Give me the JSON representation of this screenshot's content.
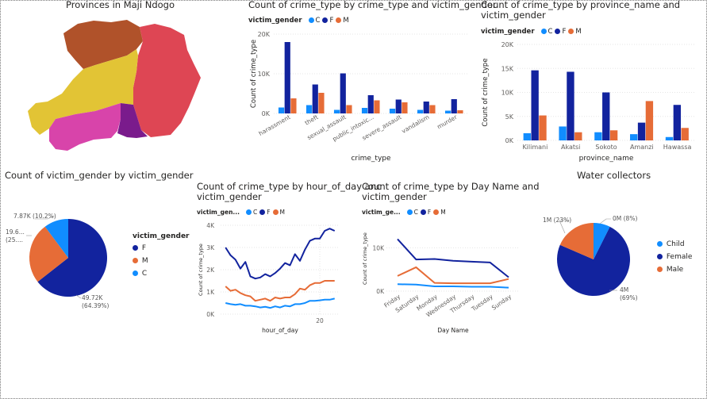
{
  "colors": {
    "C": "#118DFF",
    "F": "#12239E",
    "M": "#E66C37"
  },
  "map": {
    "title": "Provinces in Maji Ndogo"
  },
  "bar_gender": {
    "title": "Count of crime_type by crime_type and victim_gender",
    "legend_title": "victim_gender",
    "legend": [
      "C",
      "F",
      "M"
    ],
    "ylabel": "Count of crime_type",
    "xlabel": "crime_type",
    "yticks": [
      "0K",
      "10K",
      "20K"
    ]
  },
  "bar_province": {
    "title_line1": "Count of crime_type by province_name and",
    "title_line2": "victim_gender",
    "legend_title": "victim_gender",
    "legend": [
      "C",
      "F",
      "M"
    ],
    "ylabel": "Count of crime_type",
    "xlabel": "province_name",
    "yticks": [
      "0K",
      "5K",
      "10K",
      "15K",
      "20K"
    ]
  },
  "pie_gender": {
    "title": "Count of victim_gender by victim_gender",
    "legend_title": "victim_gender",
    "legend": [
      "F",
      "M",
      "C"
    ],
    "label_c": "7.87K (10.2%)",
    "label_m1": "19.6...",
    "label_m2": "(25....",
    "label_f1": "49.72K",
    "label_f2": "(64.39%)"
  },
  "line_hour": {
    "title_line1": "Count of crime_type by hour_of_day anc",
    "title_line2": "victim_gender",
    "legend_title": "victim_gen...",
    "legend": [
      "C",
      "F",
      "M"
    ],
    "ylabel": "Count of crime_type",
    "xlabel": "hour_of_day",
    "yticks": [
      "0K",
      "1K",
      "2K",
      "3K",
      "4K"
    ],
    "xtick": "20"
  },
  "line_day": {
    "title_line1": "Count of crime_type by Day Name and",
    "title_line2": "victim_gender",
    "legend_title": "victim_ge...",
    "legend": [
      "C",
      "F",
      "M"
    ],
    "ylabel": "Count of crime_type",
    "xlabel": "Day Name",
    "yticks": [
      "0K",
      "10K"
    ]
  },
  "pie_water": {
    "title": "Water collectors",
    "legend": [
      "Child",
      "Female",
      "Male"
    ],
    "label_child": "0M (8%)",
    "label_male": "1M (23%)",
    "label_female1": "4M",
    "label_female2": "(69%)"
  },
  "chart_data": [
    {
      "type": "bar",
      "title": "Count of crime_type by crime_type and victim_gender",
      "xlabel": "crime_type",
      "ylabel": "Count of crime_type",
      "ylim": [
        0,
        20000
      ],
      "categories": [
        "harassment",
        "theft",
        "sexual_assault",
        "public_intoxic...",
        "severe_assault",
        "vandalism",
        "murder"
      ],
      "series": [
        {
          "name": "C",
          "values": [
            1500,
            2100,
            900,
            1400,
            1200,
            900,
            700
          ]
        },
        {
          "name": "F",
          "values": [
            18000,
            7300,
            10100,
            4600,
            3500,
            3000,
            3600
          ]
        },
        {
          "name": "M",
          "values": [
            3800,
            5200,
            2100,
            3300,
            2800,
            2100,
            800
          ]
        }
      ]
    },
    {
      "type": "bar",
      "title": "Count of crime_type by province_name and victim_gender",
      "xlabel": "province_name",
      "ylabel": "Count of crime_type",
      "ylim": [
        0,
        20000
      ],
      "categories": [
        "Kilimani",
        "Akatsi",
        "Sokoto",
        "Amanzi",
        "Hawassa"
      ],
      "series": [
        {
          "name": "C",
          "values": [
            1500,
            2900,
            1700,
            1300,
            700
          ]
        },
        {
          "name": "F",
          "values": [
            14600,
            14300,
            10000,
            3700,
            7400
          ]
        },
        {
          "name": "M",
          "values": [
            5200,
            1700,
            2100,
            8200,
            2600
          ]
        }
      ]
    },
    {
      "type": "pie",
      "title": "Count of victim_gender by victim_gender",
      "labels": [
        "F",
        "M",
        "C"
      ],
      "values": [
        49720,
        19600,
        7870
      ],
      "percents": [
        64.39,
        25.4,
        10.2
      ]
    },
    {
      "type": "line",
      "title": "Count of crime_type by hour_of_day and victim_gender",
      "xlabel": "hour_of_day",
      "ylabel": "Count of crime_type",
      "ylim": [
        0,
        4000
      ],
      "x": [
        1,
        2,
        3,
        4,
        5,
        6,
        7,
        8,
        9,
        10,
        11,
        12,
        13,
        14,
        15,
        16,
        17,
        18,
        19,
        20,
        21,
        22,
        23
      ],
      "series": [
        {
          "name": "F",
          "values": [
            3000,
            2650,
            2450,
            2050,
            2350,
            1700,
            1600,
            1650,
            1800,
            1700,
            1850,
            2050,
            2300,
            2200,
            2700,
            2400,
            2900,
            3300,
            3400,
            3400,
            3750,
            3850,
            3750
          ]
        },
        {
          "name": "M",
          "values": [
            1250,
            1050,
            1100,
            950,
            850,
            800,
            600,
            650,
            700,
            600,
            750,
            700,
            750,
            750,
            900,
            1150,
            1100,
            1300,
            1400,
            1400,
            1500,
            1500,
            1500
          ]
        },
        {
          "name": "C",
          "values": [
            500,
            450,
            420,
            450,
            380,
            380,
            350,
            300,
            330,
            280,
            350,
            300,
            380,
            350,
            450,
            450,
            500,
            600,
            600,
            620,
            650,
            650,
            700
          ]
        }
      ]
    },
    {
      "type": "line",
      "title": "Count of crime_type by Day Name and victim_gender",
      "xlabel": "Day Name",
      "ylabel": "Count of crime_type",
      "ylim": [
        0,
        15000
      ],
      "categories": [
        "Friday",
        "Saturday",
        "Monday",
        "Wednesday",
        "Thursday",
        "Tuesday",
        "Sunday"
      ],
      "series": [
        {
          "name": "C",
          "values": [
            1600,
            1500,
            1100,
            1100,
            1000,
            1000,
            800
          ]
        },
        {
          "name": "F",
          "values": [
            12000,
            7300,
            7400,
            7000,
            6800,
            6600,
            3200
          ]
        },
        {
          "name": "M",
          "values": [
            3500,
            5500,
            1900,
            1800,
            1800,
            1800,
            2800
          ]
        }
      ]
    },
    {
      "type": "pie",
      "title": "Water collectors",
      "labels": [
        "Child",
        "Female",
        "Male"
      ],
      "values": [
        0.4,
        4,
        1
      ],
      "percents": [
        8,
        69,
        23
      ]
    }
  ]
}
